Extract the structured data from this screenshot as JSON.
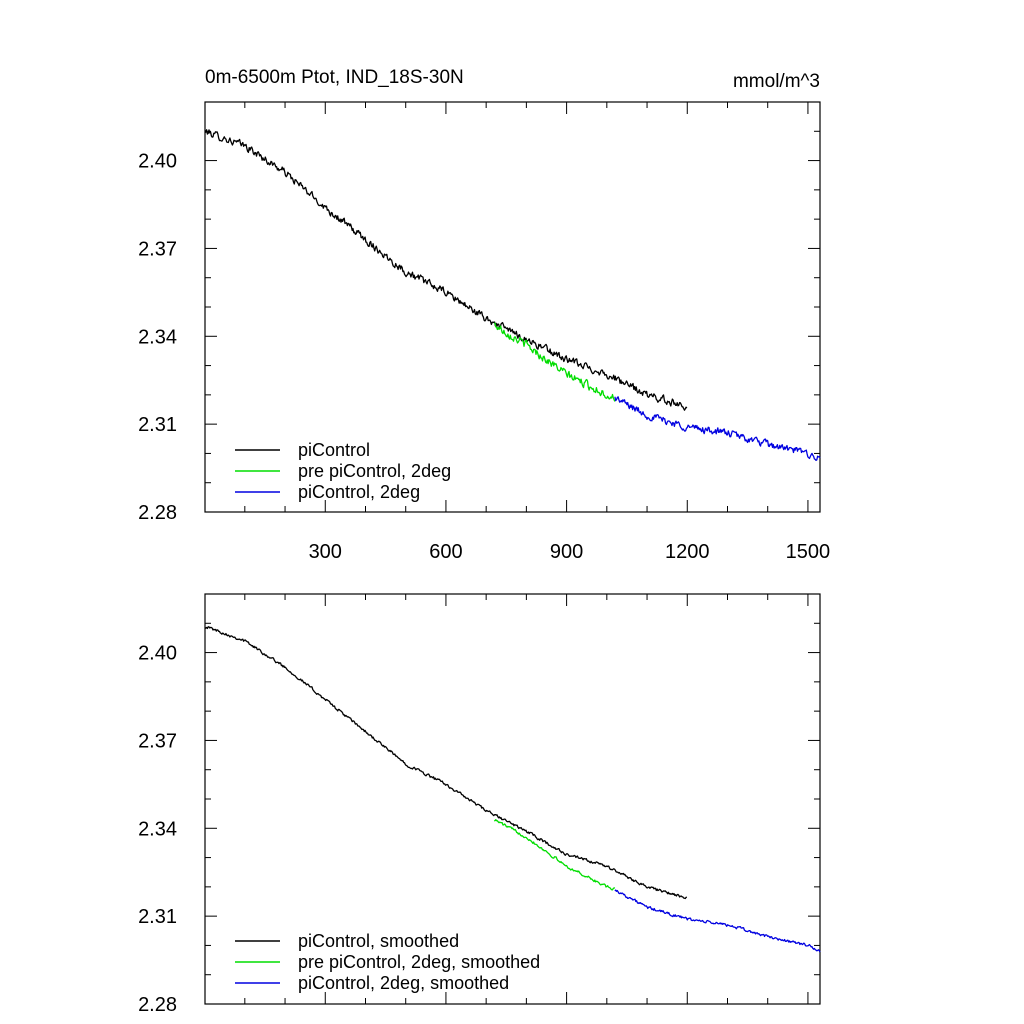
{
  "title_left": "0m-6500m Ptot, IND_18S-30N",
  "title_right": "mmol/m^3",
  "chart_data": [
    {
      "type": "line",
      "panel": "top",
      "xlim": [
        1,
        1530
      ],
      "ylim": [
        2.28,
        2.42
      ],
      "x_ticks": [
        300,
        600,
        900,
        1200,
        1500
      ],
      "x_tick_labels": [
        "300",
        "600",
        "900",
        "1200",
        "1500"
      ],
      "x_minor_step": 100,
      "y_ticks": [
        2.28,
        2.31,
        2.34,
        2.37,
        2.4
      ],
      "y_tick_labels": [
        "2.28",
        "2.31",
        "2.34",
        "2.37",
        "2.40"
      ],
      "y_minor_step": 0.01,
      "legend_position": "bottom-left",
      "series": [
        {
          "name": "piControl",
          "color": "#000000",
          "noise": 0.002,
          "points": [
            [
              1,
              2.41
            ],
            [
              100,
              2.405
            ],
            [
              200,
              2.396
            ],
            [
              300,
              2.384
            ],
            [
              400,
              2.373
            ],
            [
              500,
              2.362
            ],
            [
              600,
              2.355
            ],
            [
              700,
              2.346
            ],
            [
              800,
              2.339
            ],
            [
              900,
              2.332
            ],
            [
              1000,
              2.327
            ],
            [
              1100,
              2.32
            ],
            [
              1200,
              2.316
            ]
          ]
        },
        {
          "name": "pre piControl, 2deg",
          "color": "#00dd00",
          "noise": 0.0022,
          "points": [
            [
              720,
              2.344
            ],
            [
              800,
              2.337
            ],
            [
              900,
              2.327
            ],
            [
              1000,
              2.32
            ],
            [
              1020,
              2.319
            ]
          ]
        },
        {
          "name": "piControl, 2deg",
          "color": "#0000e0",
          "noise": 0.002,
          "points": [
            [
              1020,
              2.319
            ],
            [
              1100,
              2.313
            ],
            [
              1200,
              2.309
            ],
            [
              1300,
              2.307
            ],
            [
              1400,
              2.303
            ],
            [
              1500,
              2.3
            ],
            [
              1530,
              2.298
            ]
          ]
        }
      ]
    },
    {
      "type": "line",
      "panel": "bottom",
      "xlim": [
        1,
        1530
      ],
      "ylim": [
        2.28,
        2.42
      ],
      "x_ticks": [
        300,
        600,
        900,
        1200,
        1500
      ],
      "x_tick_labels": [],
      "x_minor_step": 100,
      "y_ticks": [
        2.28,
        2.31,
        2.34,
        2.37,
        2.4
      ],
      "y_tick_labels": [
        "2.28",
        "2.31",
        "2.34",
        "2.37",
        "2.40"
      ],
      "y_minor_step": 0.01,
      "legend_position": "bottom-left",
      "series": [
        {
          "name": "piControl, smoothed",
          "color": "#000000",
          "noise": 0.0008,
          "points": [
            [
              1,
              2.409
            ],
            [
              100,
              2.404
            ],
            [
              200,
              2.395
            ],
            [
              300,
              2.384
            ],
            [
              400,
              2.373
            ],
            [
              500,
              2.362
            ],
            [
              600,
              2.355
            ],
            [
              700,
              2.346
            ],
            [
              800,
              2.339
            ],
            [
              900,
              2.331
            ],
            [
              1000,
              2.327
            ],
            [
              1100,
              2.32
            ],
            [
              1200,
              2.316
            ]
          ]
        },
        {
          "name": "pre piControl, 2deg, smoothed",
          "color": "#00dd00",
          "noise": 0.0008,
          "points": [
            [
              720,
              2.343
            ],
            [
              800,
              2.337
            ],
            [
              900,
              2.327
            ],
            [
              1000,
              2.32
            ],
            [
              1020,
              2.319
            ]
          ]
        },
        {
          "name": "piControl, 2deg, smoothed",
          "color": "#0000e0",
          "noise": 0.0008,
          "points": [
            [
              1020,
              2.319
            ],
            [
              1100,
              2.313
            ],
            [
              1200,
              2.309
            ],
            [
              1300,
              2.307
            ],
            [
              1400,
              2.303
            ],
            [
              1500,
              2.3
            ],
            [
              1530,
              2.298
            ]
          ]
        }
      ]
    }
  ]
}
